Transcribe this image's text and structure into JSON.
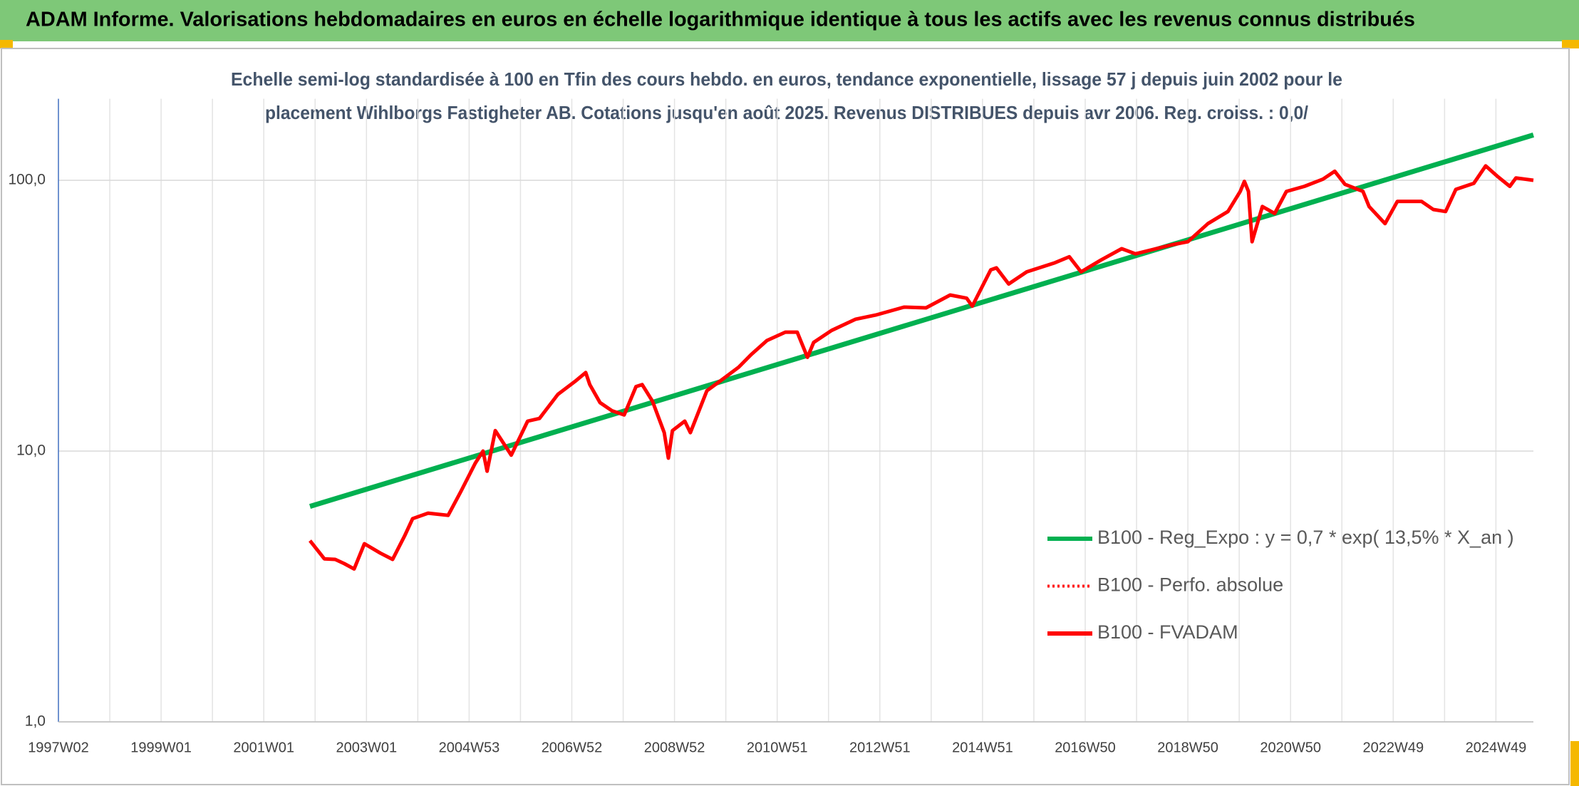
{
  "chart_data": {
    "type": "line",
    "header": "ADAM Informe. Valorisations hebdomadaires en euros en échelle logarithmique identique à tous les actifs avec les revenus connus distribués",
    "title": [
      "Echelle semi-log standardisée à 100 en Tfin des cours hebdo. en euros, tendance exponentielle, lissage 57 j depuis juin 2002 pour le",
      "placement Wihlborgs Fastigheter AB. Cotations jusqu'en août 2025. Revenus DISTRIBUES depuis avr 2006. Reg. croiss. : 0,0/"
    ],
    "log_y": true,
    "grid": true,
    "legend": "lower right",
    "xlim": [
      1997.0,
      2025.73
    ],
    "xticks": [
      {
        "value": 1997,
        "label": "1997W02"
      },
      {
        "value": 1999,
        "label": "1999W01"
      },
      {
        "value": 2001,
        "label": "2001W01"
      },
      {
        "value": 2003,
        "label": "2003W01"
      },
      {
        "value": 2005,
        "label": "2004W53"
      },
      {
        "value": 2007,
        "label": "2006W52"
      },
      {
        "value": 2009,
        "label": "2008W52"
      },
      {
        "value": 2011,
        "label": "2010W51"
      },
      {
        "value": 2013,
        "label": "2012W51"
      },
      {
        "value": 2015,
        "label": "2014W51"
      },
      {
        "value": 2017,
        "label": "2016W50"
      },
      {
        "value": 2019,
        "label": "2018W50"
      },
      {
        "value": 2021,
        "label": "2020W50"
      },
      {
        "value": 2023,
        "label": "2022W49"
      },
      {
        "value": 2025,
        "label": "2024W49"
      }
    ],
    "xgrid_minor": [
      1998,
      2000,
      2002,
      2004,
      2006,
      2008,
      2010,
      2012,
      2014,
      2016,
      2018,
      2020,
      2022,
      2024
    ],
    "ylim": [
      1,
      200
    ],
    "yticks": [
      {
        "value": 1,
        "label": "1,0"
      },
      {
        "value": 10,
        "label": "10,0"
      },
      {
        "value": 100,
        "label": "100,0"
      }
    ],
    "series": [
      {
        "name": "B100 - Reg_Expo : y = 0,7 * exp( 13,5% *  X_an )",
        "color": "#00b050",
        "style": "solid",
        "x": [
          2001.9,
          2025.73
        ],
        "values": [
          6.25,
          147
        ]
      },
      {
        "name": "B100 - Perfo. absolue",
        "color": "#ff0000",
        "style": "dotted",
        "x": [],
        "values": []
      },
      {
        "name": "B100 - FVADAM",
        "color": "#ff0000",
        "style": "solid",
        "x": [
          2001.9,
          2002.18,
          2002.39,
          2002.57,
          2002.76,
          2002.96,
          2003.27,
          2003.51,
          2003.75,
          2003.9,
          2004.2,
          2004.59,
          2004.84,
          2005.12,
          2005.27,
          2005.35,
          2005.51,
          2005.82,
          2006.14,
          2006.37,
          2006.73,
          2007.08,
          2007.27,
          2007.35,
          2007.55,
          2007.78,
          2008.02,
          2008.25,
          2008.37,
          2008.57,
          2008.8,
          2008.88,
          2008.96,
          2009.2,
          2009.31,
          2009.63,
          2009.9,
          2010.25,
          2010.49,
          2010.8,
          2011.16,
          2011.39,
          2011.59,
          2011.71,
          2012.06,
          2012.53,
          2012.92,
          2013.47,
          2013.9,
          2014.37,
          2014.69,
          2014.8,
          2015.16,
          2015.27,
          2015.51,
          2015.86,
          2016.41,
          2016.69,
          2016.92,
          2017.31,
          2017.71,
          2017.98,
          2018.69,
          2019.0,
          2019.39,
          2019.78,
          2020.02,
          2020.1,
          2020.18,
          2020.25,
          2020.45,
          2020.69,
          2020.92,
          2021.27,
          2021.63,
          2021.86,
          2022.06,
          2022.41,
          2022.53,
          2022.84,
          2023.08,
          2023.55,
          2023.78,
          2024.02,
          2024.22,
          2024.57,
          2024.8,
          2025.04,
          2025.27,
          2025.39,
          2025.73
        ],
        "values": [
          4.67,
          4.0,
          3.98,
          3.84,
          3.67,
          4.55,
          4.2,
          3.98,
          4.89,
          5.63,
          5.9,
          5.79,
          7.1,
          9.02,
          10.0,
          8.43,
          11.9,
          9.66,
          12.9,
          13.2,
          16.2,
          18.2,
          19.5,
          17.6,
          15.1,
          14.1,
          13.6,
          17.3,
          17.6,
          15.3,
          11.7,
          9.42,
          11.9,
          12.9,
          11.7,
          16.7,
          18.2,
          20.4,
          22.7,
          25.6,
          27.5,
          27.5,
          22.2,
          25.2,
          27.9,
          30.7,
          31.8,
          34.0,
          33.8,
          37.7,
          36.7,
          34.3,
          46.7,
          47.5,
          41.4,
          45.9,
          49.6,
          52.2,
          45.9,
          50.8,
          55.9,
          53.5,
          57.8,
          59.3,
          69.2,
          76.7,
          91.0,
          99.1,
          91.0,
          59.3,
          80.0,
          75.4,
          91.0,
          95.0,
          101,
          108,
          96.6,
          91.0,
          80.0,
          69.2,
          83.6,
          83.6,
          78.0,
          76.7,
          92.6,
          97.5,
          113,
          103,
          95.0,
          102,
          100
        ]
      }
    ]
  }
}
